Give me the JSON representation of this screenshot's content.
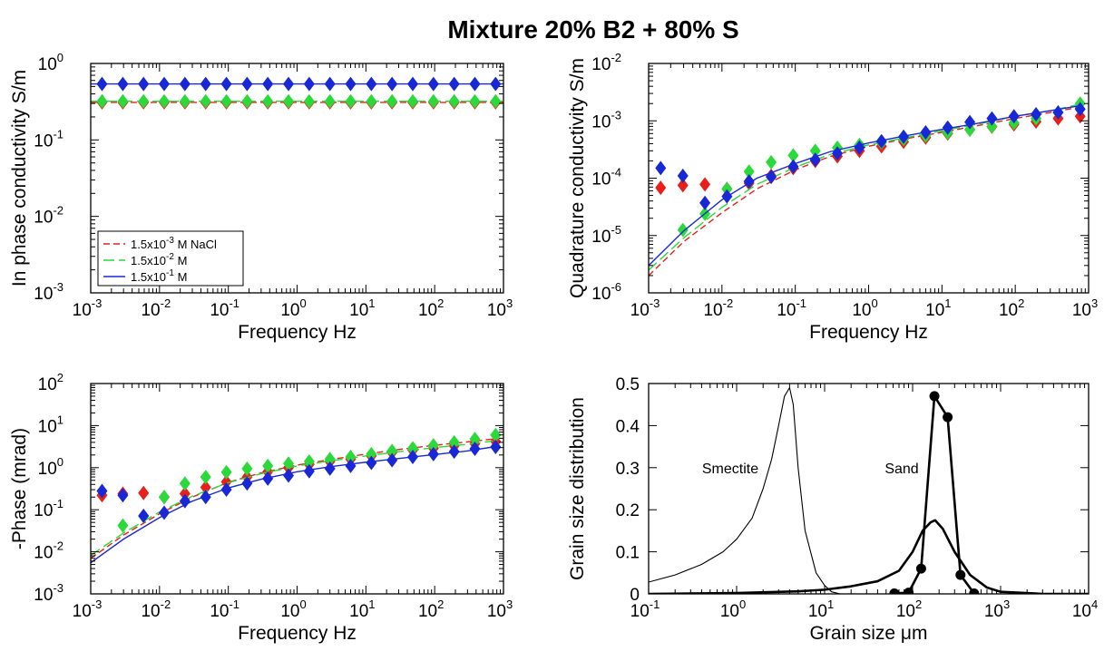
{
  "page_title": "Mixture 20% B2 + 80% S",
  "chart_data": [
    {
      "id": "in-phase",
      "type": "scatter",
      "xlabel": "Frequency Hz",
      "ylabel": "In phase conductivity S/m",
      "xscale": "log",
      "yscale": "log",
      "xlim": [
        0.001,
        1000
      ],
      "ylim": [
        0.001,
        1
      ],
      "legend_position": "lower-left",
      "series": [
        {
          "name": "1.5x10-3 M NaCl",
          "color": "#e8201a",
          "line": "dashed",
          "x": [
            0.00146,
            0.00293,
            0.00586,
            0.0117,
            0.0234,
            0.0469,
            0.0938,
            0.1875,
            0.375,
            0.75,
            1.5,
            3,
            6,
            12,
            24,
            48,
            96,
            192,
            384,
            768
          ],
          "y": [
            0.31,
            0.31,
            0.31,
            0.31,
            0.31,
            0.31,
            0.31,
            0.31,
            0.31,
            0.31,
            0.31,
            0.31,
            0.31,
            0.31,
            0.31,
            0.31,
            0.31,
            0.31,
            0.31,
            0.31
          ],
          "model_y": [
            0.31,
            0.31
          ]
        },
        {
          "name": "1.5x10-2 M",
          "color": "#2bd93b",
          "line": "long-dashed",
          "x": [
            0.00146,
            0.00293,
            0.00586,
            0.0117,
            0.0234,
            0.0469,
            0.0938,
            0.1875,
            0.375,
            0.75,
            1.5,
            3,
            6,
            12,
            24,
            48,
            96,
            192,
            384,
            768
          ],
          "y": [
            0.32,
            0.32,
            0.32,
            0.32,
            0.32,
            0.32,
            0.32,
            0.32,
            0.32,
            0.32,
            0.32,
            0.32,
            0.32,
            0.32,
            0.32,
            0.32,
            0.32,
            0.32,
            0.32,
            0.32
          ],
          "model_y": [
            0.32,
            0.32
          ]
        },
        {
          "name": "1.5x10-1 M",
          "color": "#1828d6",
          "line": "solid",
          "x": [
            0.00146,
            0.00293,
            0.00586,
            0.0117,
            0.0234,
            0.0469,
            0.0938,
            0.1875,
            0.375,
            0.75,
            1.5,
            3,
            6,
            12,
            24,
            48,
            96,
            192,
            384,
            768
          ],
          "y": [
            0.54,
            0.54,
            0.54,
            0.54,
            0.54,
            0.54,
            0.54,
            0.54,
            0.54,
            0.54,
            0.54,
            0.54,
            0.54,
            0.54,
            0.54,
            0.54,
            0.54,
            0.54,
            0.54,
            0.54
          ],
          "model_y": [
            0.54,
            0.54
          ]
        }
      ]
    },
    {
      "id": "quadrature",
      "type": "scatter",
      "xlabel": "Frequency Hz",
      "ylabel": "Quadrature conductivity S/m",
      "xscale": "log",
      "yscale": "log",
      "xlim": [
        0.001,
        1000
      ],
      "ylim": [
        1e-06,
        0.01
      ],
      "series": [
        {
          "name": "1.5x10-3 M NaCl",
          "color": "#e8201a",
          "line": "dashed",
          "x": [
            0.00146,
            0.00293,
            0.00586,
            0.0117,
            0.0234,
            0.0469,
            0.0938,
            0.1875,
            0.375,
            0.75,
            1.5,
            3,
            6,
            12,
            24,
            48,
            96,
            192,
            384,
            768
          ],
          "y": [
            6.8e-05,
            7.5e-05,
            7.8e-05,
            6.5e-05,
            8.2e-05,
            0.00011,
            0.00015,
            0.0002,
            0.00024,
            0.0003,
            0.00036,
            0.00043,
            0.00051,
            0.0006,
            0.0007,
            0.00079,
            0.00087,
            0.00097,
            0.0011,
            0.0012
          ],
          "model_x": [
            0.001,
            0.003,
            0.01,
            0.03,
            0.1,
            0.3,
            1,
            3,
            10,
            30,
            100,
            300,
            700
          ],
          "model_y": [
            2e-06,
            7.8e-06,
            2.5e-05,
            6.5e-05,
            0.00014,
            0.00024,
            0.00036,
            0.00048,
            0.00063,
            0.00082,
            0.0011,
            0.0014,
            0.0017
          ]
        },
        {
          "name": "1.5x10-2 M",
          "color": "#2bd93b",
          "line": "long-dashed",
          "x": [
            0.00293,
            0.00586,
            0.0117,
            0.0234,
            0.0469,
            0.0938,
            0.1875,
            0.375,
            0.75,
            1.5,
            3,
            6,
            12,
            24,
            48,
            96,
            192,
            384,
            768
          ],
          "y": [
            1.25e-05,
            2.4e-05,
            6.5e-05,
            0.00013,
            0.00019,
            0.00025,
            0.0003,
            0.00034,
            0.00038,
            0.00042,
            0.00048,
            0.00055,
            0.00062,
            0.0007,
            0.0008,
            0.00092,
            0.0011,
            0.0014,
            0.002
          ],
          "model_x": [
            0.001,
            0.003,
            0.01,
            0.03,
            0.1,
            0.3,
            1,
            3,
            10,
            30,
            100,
            300,
            700
          ],
          "model_y": [
            2.5e-06,
            9e-06,
            3.1e-05,
            7.8e-05,
            0.000155,
            0.00026,
            0.00038,
            0.0005,
            0.00067,
            0.00087,
            0.0012,
            0.0015,
            0.0019
          ]
        },
        {
          "name": "1.5x10-1 M",
          "color": "#1828d6",
          "line": "solid",
          "x": [
            0.00146,
            0.00293,
            0.00586,
            0.0117,
            0.0234,
            0.0469,
            0.0938,
            0.1875,
            0.375,
            0.75,
            1.5,
            3,
            6,
            12,
            24,
            48,
            96,
            192,
            384,
            768
          ],
          "y": [
            0.00015,
            0.00011,
            3.7e-05,
            4.8e-05,
            8.8e-05,
            0.000105,
            0.00016,
            0.00021,
            0.00027,
            0.00034,
            0.00044,
            0.00053,
            0.00063,
            0.00076,
            0.00095,
            0.0011,
            0.0012,
            0.0013,
            0.0014,
            0.0016
          ],
          "model_x": [
            0.001,
            0.003,
            0.01,
            0.03,
            0.1,
            0.3,
            1,
            3,
            10,
            30,
            100,
            300,
            700
          ],
          "model_y": [
            3e-06,
            1.2e-05,
            4.2e-05,
            0.0001,
            0.00018,
            0.00029,
            0.00041,
            0.00054,
            0.00071,
            0.0009,
            0.0012,
            0.0015,
            0.0018
          ]
        }
      ]
    },
    {
      "id": "phase",
      "type": "scatter",
      "xlabel": "Frequency Hz",
      "ylabel": "-Phase (mrad)",
      "xscale": "log",
      "yscale": "log",
      "xlim": [
        0.001,
        1000
      ],
      "ylim": [
        0.001,
        100
      ],
      "series": [
        {
          "name": "1.5x10-3 M NaCl",
          "color": "#e8201a",
          "line": "dashed",
          "x": [
            0.00146,
            0.00293,
            0.00586,
            0.0117,
            0.0234,
            0.0469,
            0.0938,
            0.1875,
            0.375,
            0.75,
            1.5,
            3,
            6,
            12,
            24,
            48,
            96,
            192,
            384,
            768
          ],
          "y": [
            0.22,
            0.24,
            0.25,
            0.2,
            0.24,
            0.34,
            0.46,
            0.6,
            0.8,
            1.0,
            1.2,
            1.4,
            1.6,
            1.9,
            2.3,
            2.6,
            2.9,
            3.3,
            3.7,
            4.2
          ],
          "model_x": [
            0.001,
            0.003,
            0.01,
            0.03,
            0.1,
            0.3,
            1,
            3,
            10,
            30,
            100,
            300,
            700
          ],
          "model_y": [
            0.007,
            0.025,
            0.08,
            0.2,
            0.45,
            0.75,
            1.15,
            1.55,
            2.1,
            2.7,
            3.4,
            4.1,
            4.8
          ]
        },
        {
          "name": "1.5x10-2 M",
          "color": "#2bd93b",
          "line": "long-dashed",
          "x": [
            0.00293,
            0.00586,
            0.0117,
            0.0234,
            0.0469,
            0.0938,
            0.1875,
            0.375,
            0.75,
            1.5,
            3,
            6,
            12,
            24,
            48,
            96,
            192,
            384,
            768
          ],
          "y": [
            0.042,
            0.07,
            0.2,
            0.42,
            0.6,
            0.78,
            0.95,
            1.1,
            1.25,
            1.4,
            1.6,
            1.8,
            2.1,
            2.5,
            2.9,
            3.4,
            4.0,
            4.8,
            6.0
          ],
          "model_x": [
            0.001,
            0.003,
            0.01,
            0.03,
            0.1,
            0.3,
            1,
            3,
            10,
            30,
            100,
            300,
            700
          ],
          "model_y": [
            0.0082,
            0.028,
            0.088,
            0.21,
            0.44,
            0.72,
            1.1,
            1.45,
            1.9,
            2.4,
            3.0,
            3.6,
            4.3
          ]
        },
        {
          "name": "1.5x10-1 M",
          "color": "#1828d6",
          "line": "solid",
          "x": [
            0.00146,
            0.00293,
            0.00586,
            0.0117,
            0.0234,
            0.0469,
            0.0938,
            0.1875,
            0.375,
            0.75,
            1.5,
            3,
            6,
            12,
            24,
            48,
            96,
            192,
            384,
            768
          ],
          "y": [
            0.28,
            0.22,
            0.072,
            0.085,
            0.16,
            0.2,
            0.3,
            0.42,
            0.55,
            0.65,
            0.82,
            0.95,
            1.1,
            1.3,
            1.5,
            1.8,
            2.1,
            2.4,
            2.8,
            3.1
          ],
          "model_x": [
            0.001,
            0.003,
            0.01,
            0.03,
            0.1,
            0.3,
            1,
            3,
            10,
            30,
            100,
            300,
            700
          ],
          "model_y": [
            0.0055,
            0.02,
            0.065,
            0.16,
            0.33,
            0.53,
            0.8,
            1.05,
            1.35,
            1.65,
            2.05,
            2.5,
            3.1
          ]
        }
      ]
    },
    {
      "id": "grain-size",
      "type": "line",
      "xlabel": "Grain size μm",
      "ylabel": "Grain size distribution",
      "xscale": "log",
      "xlim": [
        0.1,
        10000
      ],
      "ylim": [
        0,
        0.5
      ],
      "annotations": [
        "Smectite",
        "Sand"
      ],
      "series": [
        {
          "role": "smectite",
          "style": "thin",
          "x": [
            0.1,
            0.2,
            0.4,
            0.7,
            1,
            1.5,
            2,
            2.5,
            3,
            3.5,
            4.0,
            4.4,
            5,
            6,
            8,
            10,
            12,
            15
          ],
          "y": [
            0.028,
            0.045,
            0.07,
            0.1,
            0.13,
            0.18,
            0.25,
            0.32,
            0.4,
            0.47,
            0.49,
            0.45,
            0.3,
            0.15,
            0.05,
            0.02,
            0.005,
            0.0
          ]
        },
        {
          "role": "sand-measured",
          "style": "thick-with-markers",
          "x": [
            62,
            90,
            125,
            177,
            250,
            350,
            500
          ],
          "y": [
            0.001,
            0.003,
            0.06,
            0.47,
            0.42,
            0.045,
            0.001
          ]
        },
        {
          "role": "sand-fit",
          "style": "thick",
          "x": [
            0.1,
            1,
            5,
            10,
            20,
            40,
            70,
            100,
            130,
            160,
            180,
            220,
            300,
            450,
            700,
            1000,
            3000,
            10000
          ],
          "y": [
            0.0,
            0.002,
            0.006,
            0.01,
            0.018,
            0.03,
            0.055,
            0.1,
            0.15,
            0.17,
            0.175,
            0.155,
            0.1,
            0.045,
            0.015,
            0.005,
            0.0,
            0.0
          ]
        }
      ]
    }
  ]
}
